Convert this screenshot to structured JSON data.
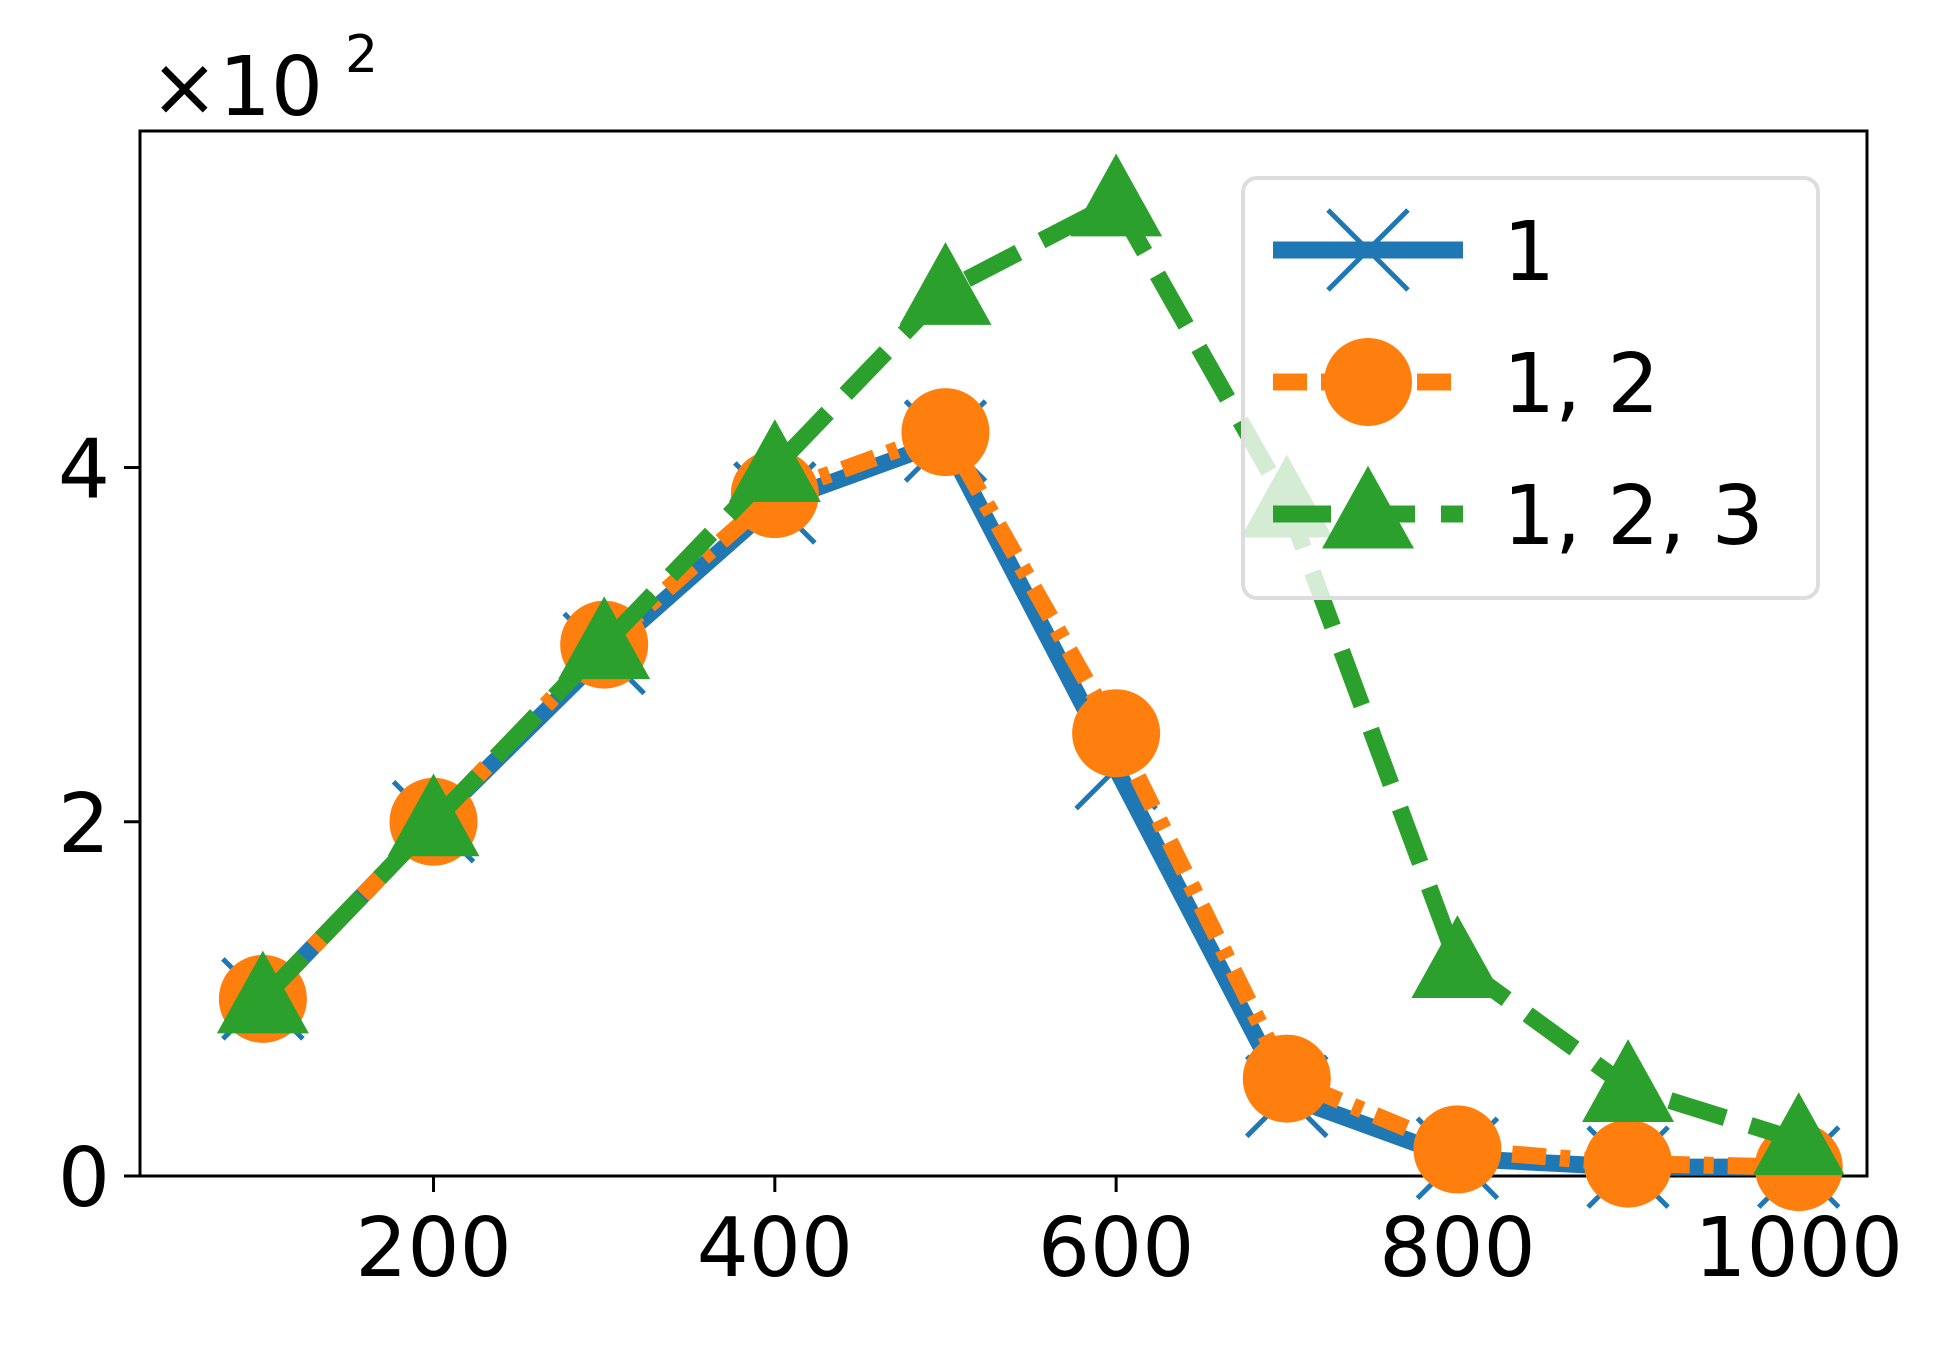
{
  "chart_data": {
    "type": "line",
    "title": "",
    "xlabel": "",
    "ylabel": "",
    "y_multiplier": {
      "base": "×10",
      "exponent": "2"
    },
    "x": [
      100,
      200,
      300,
      400,
      500,
      600,
      700,
      800,
      900,
      1000
    ],
    "xlim": [
      28,
      1040
    ],
    "ylim": [
      0,
      5.9
    ],
    "x_ticks": [
      200,
      400,
      600,
      800,
      1000
    ],
    "x_tick_labels": [
      "200",
      "400",
      "600",
      "800",
      "1000"
    ],
    "y_ticks": [
      0,
      2,
      4
    ],
    "y_tick_labels": [
      "0",
      "2",
      "4"
    ],
    "grid": false,
    "legend_position": "top-right",
    "series": [
      {
        "name": "1",
        "color": "#1f77b4",
        "marker": "x",
        "line_style": "solid",
        "values": [
          1.0,
          2.0,
          2.95,
          3.8,
          4.15,
          2.3,
          0.45,
          0.1,
          0.05,
          0.05
        ]
      },
      {
        "name": "1, 2",
        "color": "#ff7f0e",
        "marker": "circle",
        "line_style": "dashdot",
        "values": [
          1.0,
          2.0,
          3.0,
          3.85,
          4.2,
          2.5,
          0.55,
          0.15,
          0.07,
          0.05
        ]
      },
      {
        "name": "1, 2, 3",
        "color": "#2ca02c",
        "marker": "triangle",
        "line_style": "dashed",
        "values": [
          1.0,
          2.0,
          3.0,
          4.0,
          5.0,
          5.5,
          3.8,
          1.2,
          0.5,
          0.2
        ]
      }
    ]
  }
}
